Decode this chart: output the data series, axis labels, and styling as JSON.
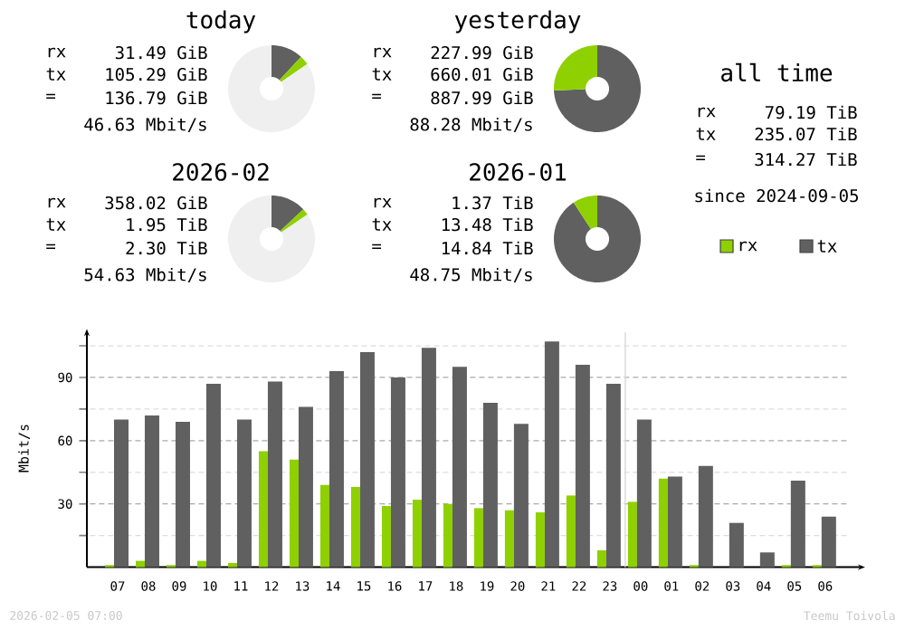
{
  "chart_data": [
    {
      "type": "donut",
      "title": "today",
      "categories": [
        null,
        null,
        null
      ],
      "values": [
        11.9,
        3.5,
        84.6
      ],
      "colors": [
        "#606060",
        "#8fd000",
        "#efefef"
      ],
      "annotations": [
        "rx",
        "31.49 GiB",
        "tx",
        "105.29 GiB",
        "=",
        "136.79 GiB",
        "46.63 Mbit/s"
      ]
    },
    {
      "type": "donut",
      "title": "yesterday",
      "categories": [
        null,
        null
      ],
      "values": [
        74.3,
        25.7
      ],
      "colors": [
        "#606060",
        "#8fd000"
      ],
      "annotations": [
        "rx",
        "227.99 GiB",
        "tx",
        "660.01 GiB",
        "=",
        "887.99 GiB",
        "88.28 Mbit/s"
      ]
    },
    {
      "type": "donut",
      "title": "2026-02",
      "categories": [
        null,
        null,
        null
      ],
      "values": [
        13.1,
        2.4,
        84.5
      ],
      "colors": [
        "#606060",
        "#8fd000",
        "#efefef"
      ],
      "annotations": [
        "rx",
        "358.02 GiB",
        "tx",
        "1.95 TiB",
        "=",
        "2.30 TiB",
        "54.63 Mbit/s"
      ]
    },
    {
      "type": "donut",
      "title": "2026-01",
      "categories": [
        null,
        null
      ],
      "values": [
        90.8,
        9.2
      ],
      "colors": [
        "#606060",
        "#8fd000"
      ],
      "annotations": [
        "rx",
        "1.37 TiB",
        "tx",
        "13.48 TiB",
        "=",
        "14.84 TiB",
        "48.75 Mbit/s"
      ]
    },
    {
      "type": "other",
      "title": "all time",
      "annotations": [
        "rx",
        "79.19 TiB",
        "tx",
        "235.07 TiB",
        "=",
        "314.27 TiB",
        "since 2024-09-05"
      ]
    },
    {
      "type": "bar",
      "ylabel": "Mbit/s",
      "categories": [
        "07",
        "08",
        "09",
        "10",
        "11",
        "12",
        "13",
        "14",
        "15",
        "16",
        "17",
        "18",
        "19",
        "20",
        "21",
        "22",
        "23",
        "00",
        "01",
        "02",
        "03",
        "04",
        "05",
        "06"
      ],
      "series": [
        {
          "name": "rx",
          "color": "#8fd000",
          "values": [
            1,
            3,
            1,
            3,
            2,
            55,
            51,
            39,
            38,
            29,
            32,
            30,
            28,
            27,
            26,
            34,
            8,
            31,
            42,
            1,
            0,
            0,
            1,
            1
          ]
        },
        {
          "name": "tx",
          "color": "#606060",
          "values": [
            70,
            72,
            69,
            87,
            70,
            88,
            76,
            93,
            102,
            90,
            104,
            95,
            78,
            68,
            107,
            96,
            87,
            70,
            43,
            48,
            21,
            7,
            41,
            24
          ]
        }
      ],
      "ylim": [
        0,
        113
      ],
      "yticks": [
        {
          "value": 15,
          "label": null
        },
        30,
        {
          "value": 45,
          "label": null
        },
        60,
        {
          "value": 75,
          "label": null
        },
        90,
        {
          "value": 105,
          "label": null
        }
      ],
      "grid": "y",
      "legend": "top right",
      "ref_lines": [
        {
          "axis": "x",
          "value": "00",
          "color": "#dddddd"
        }
      ],
      "annotations": [
        "2026-02-05 07:00",
        "Teemu Toivola"
      ]
    }
  ]
}
